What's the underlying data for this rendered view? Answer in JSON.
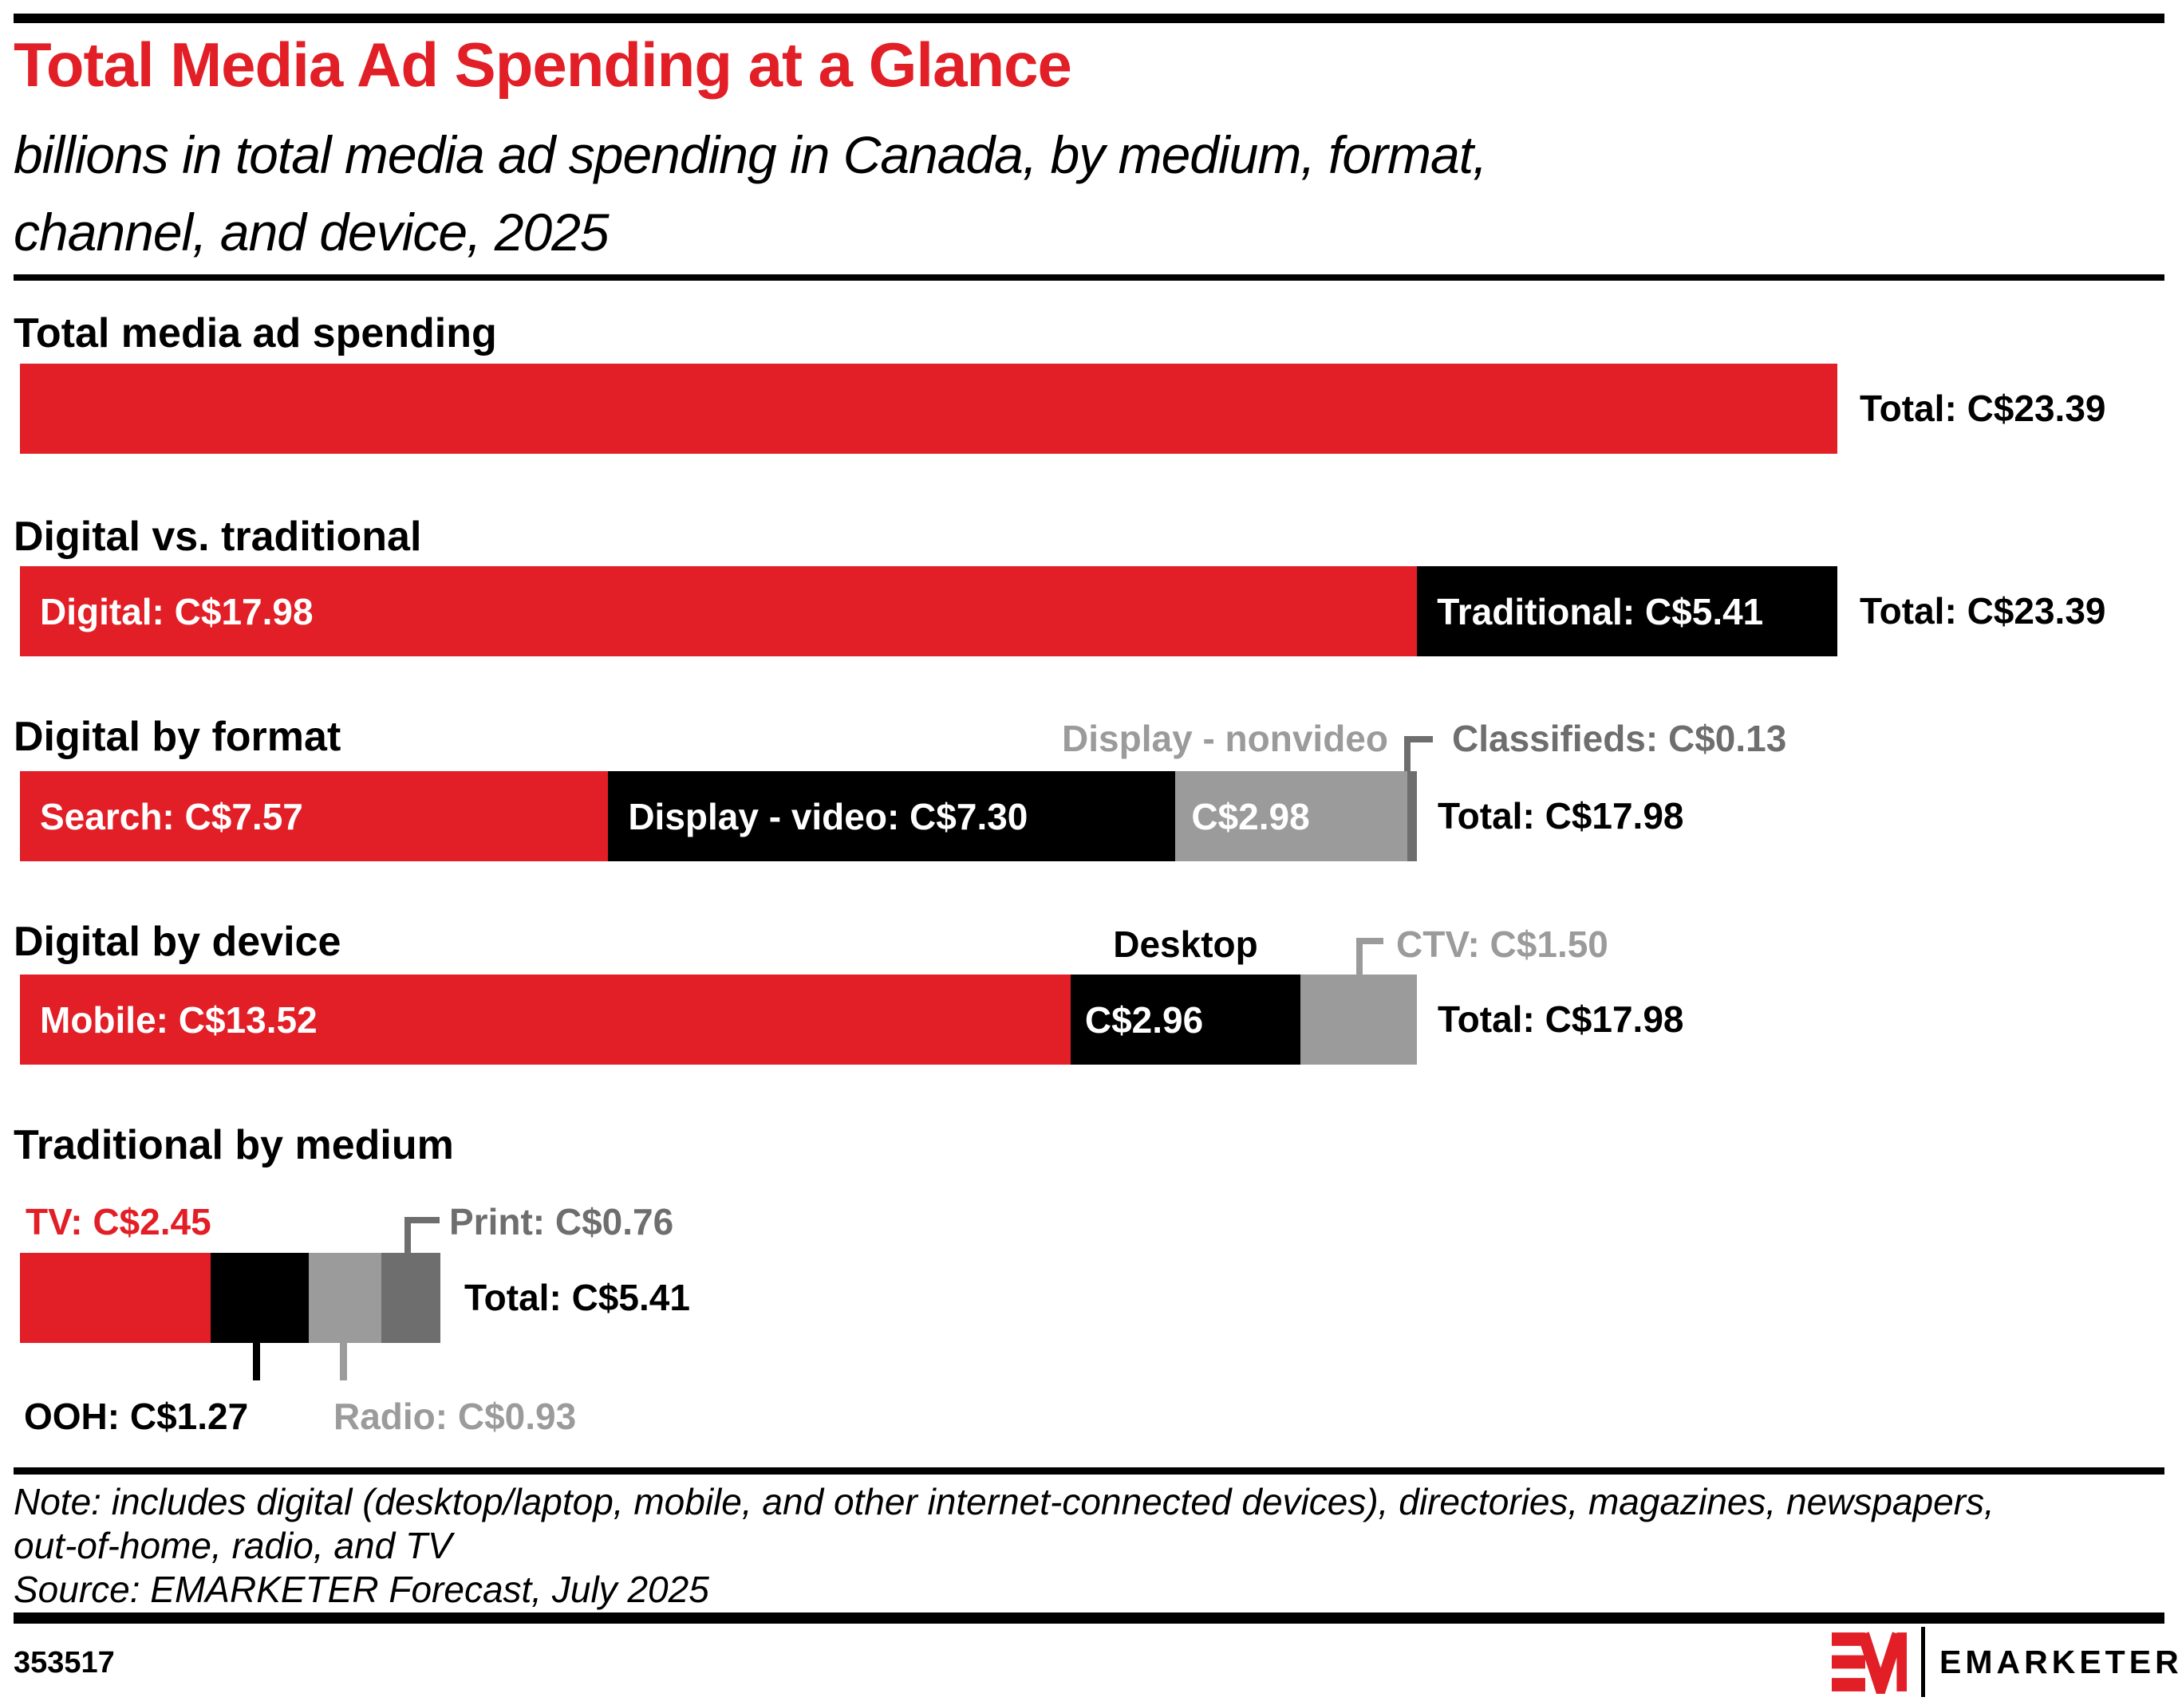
{
  "header": {
    "title": "Total Media Ad Spending at a Glance",
    "subtitle_line1": "billions in total media ad spending in Canada, by medium, format,",
    "subtitle_line2": "channel, and device, 2025"
  },
  "colors": {
    "red": "#E21E26",
    "black": "#000000",
    "light-gray": "#9B9B9B",
    "dark-gray": "#6E6E6E",
    "white": "#FFFFFF"
  },
  "chart_data": {
    "type": "bar",
    "orientation": "horizontal-stacked",
    "unit": "C$ billions",
    "title": "Total Media Ad Spending at a Glance",
    "subtitle": "billions in total media ad spending in Canada, by medium, format, channel, and device, 2025",
    "sections": [
      {
        "heading": "Total media ad spending",
        "total_label": "Total: C$23.39",
        "total_value": 23.39,
        "segments": [
          {
            "name": "Total media ad spending",
            "value": 23.39,
            "bar_label": "",
            "color": "red"
          }
        ]
      },
      {
        "heading": "Digital vs. traditional",
        "total_label": "Total: C$23.39",
        "total_value": 23.39,
        "segments": [
          {
            "name": "Digital",
            "value": 17.98,
            "bar_label": "Digital: C$17.98",
            "color": "red"
          },
          {
            "name": "Traditional",
            "value": 5.41,
            "bar_label": "Traditional: C$5.41",
            "color": "black"
          }
        ]
      },
      {
        "heading": "Digital by format",
        "total_label": "Total: C$17.98",
        "total_value": 17.98,
        "segments": [
          {
            "name": "Search",
            "value": 7.57,
            "bar_label": "Search: C$7.57",
            "color": "red"
          },
          {
            "name": "Display - video",
            "value": 7.3,
            "bar_label": "Display - video: C$7.30",
            "color": "black"
          },
          {
            "name": "Display - nonvideo",
            "value": 2.98,
            "bar_label": "C$2.98",
            "color": "light-gray"
          },
          {
            "name": "Classifieds",
            "value": 0.13,
            "bar_label": "",
            "color": "dark-gray"
          }
        ],
        "callouts": {
          "nonvideo": "Display - nonvideo",
          "classifieds": "Classifieds: C$0.13"
        }
      },
      {
        "heading": "Digital by device",
        "total_label": "Total: C$17.98",
        "total_value": 17.98,
        "segments": [
          {
            "name": "Mobile",
            "value": 13.52,
            "bar_label": "Mobile: C$13.52",
            "color": "red"
          },
          {
            "name": "Desktop",
            "value": 2.96,
            "bar_label": "C$2.96",
            "color": "black"
          },
          {
            "name": "CTV",
            "value": 1.5,
            "bar_label": "",
            "color": "light-gray"
          }
        ],
        "callouts": {
          "desktop": "Desktop",
          "ctv": "CTV: C$1.50"
        }
      },
      {
        "heading": "Traditional by medium",
        "total_label": "Total: C$5.41",
        "total_value": 5.41,
        "segments": [
          {
            "name": "TV",
            "value": 2.45,
            "bar_label": "",
            "color": "red"
          },
          {
            "name": "OOH",
            "value": 1.27,
            "bar_label": "",
            "color": "black"
          },
          {
            "name": "Radio",
            "value": 0.93,
            "bar_label": "",
            "color": "light-gray"
          },
          {
            "name": "Print",
            "value": 0.76,
            "bar_label": "",
            "color": "dark-gray"
          }
        ],
        "callouts": {
          "tv": "TV: C$2.45",
          "print": "Print: C$0.76",
          "ooh": "OOH: C$1.27",
          "radio": "Radio: C$0.93"
        }
      }
    ]
  },
  "footer": {
    "note_line1": "Note: includes digital (desktop/laptop, mobile, and other internet-connected devices), directories, magazines, newspapers,",
    "note_line2": "out-of-home, radio, and TV",
    "source": "Source: EMARKETER Forecast, July 2025",
    "chart_id": "353517",
    "logo_text": "EMARKETER"
  }
}
